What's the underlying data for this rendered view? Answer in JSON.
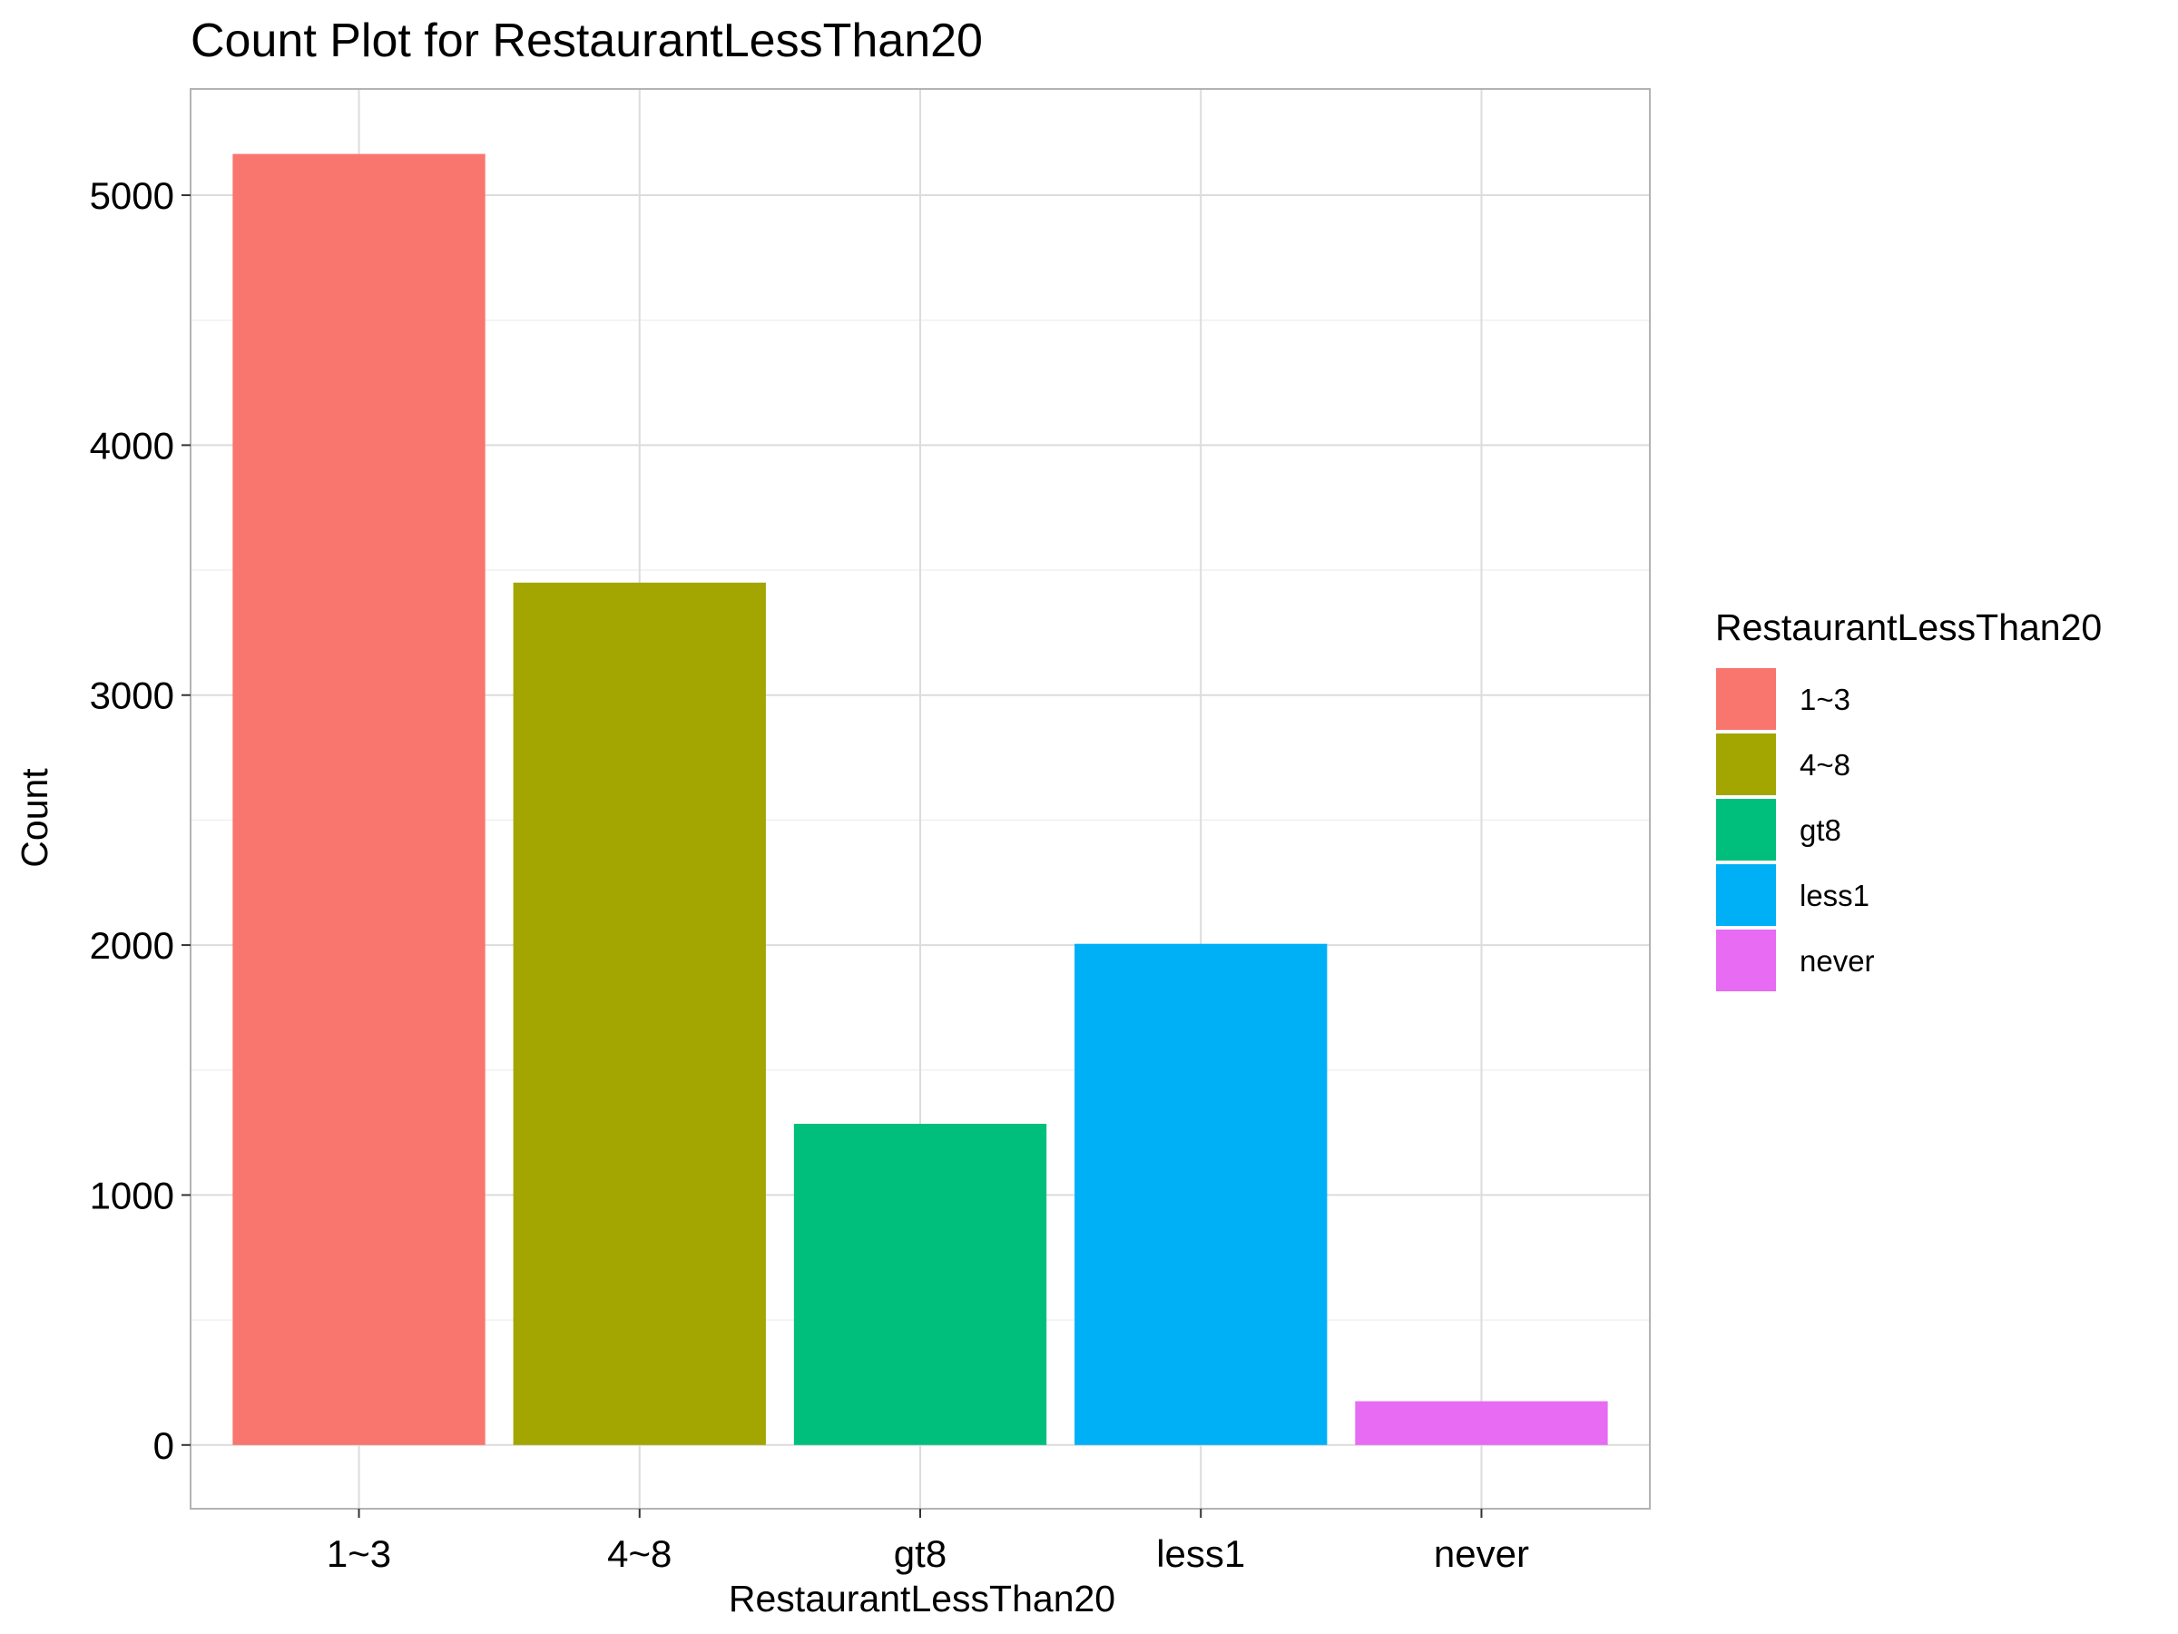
{
  "chart_data": {
    "type": "bar",
    "title": "Count Plot for RestaurantLessThan20",
    "xlabel": "RestaurantLessThan20",
    "ylabel": "Count",
    "categories": [
      "1~3",
      "4~8",
      "gt8",
      "less1",
      "never"
    ],
    "values": [
      5165,
      3450,
      1285,
      2005,
      175
    ],
    "colors": [
      "#F8766D",
      "#A3A500",
      "#00BF7D",
      "#00B0F6",
      "#E76BF3"
    ],
    "ylim": [
      -255,
      5425
    ],
    "yticks": [
      0,
      1000,
      2000,
      3000,
      4000,
      5000
    ],
    "grid": true,
    "legend": {
      "title": "RestaurantLessThan20",
      "position": "right",
      "entries": [
        "1~3",
        "4~8",
        "gt8",
        "less1",
        "never"
      ]
    }
  }
}
